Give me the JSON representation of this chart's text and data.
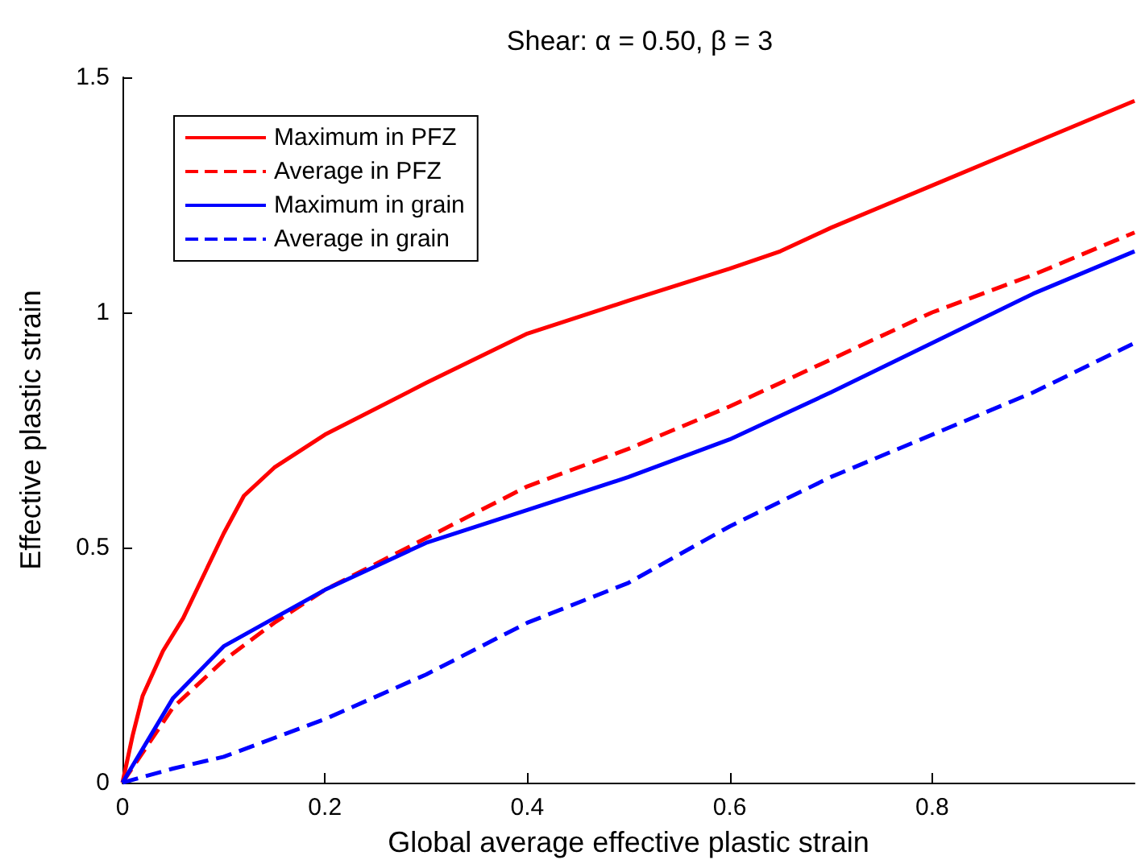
{
  "chart_data": {
    "type": "line",
    "title": "Shear: α = 0.50, β = 3",
    "xlabel": "Global average effective plastic strain",
    "ylabel": "Effective plastic strain",
    "xlim": [
      0,
      1
    ],
    "xticks": [
      0,
      0.2,
      0.4,
      0.6,
      0.8
    ],
    "ylim": [
      0,
      1.5
    ],
    "yticks": [
      0,
      0.5,
      1,
      1.5
    ],
    "grid": false,
    "legend": "top left",
    "marker": "none",
    "series": [
      {
        "name": "Maximum in PFZ",
        "color": "#ff0000",
        "line_style": "solid",
        "x": [
          0,
          0.01,
          0.02,
          0.04,
          0.06,
          0.08,
          0.1,
          0.12,
          0.15,
          0.2,
          0.3,
          0.4,
          0.5,
          0.6,
          0.65,
          0.7,
          0.8,
          0.9,
          1
        ],
        "values": [
          0,
          0.1,
          0.185,
          0.28,
          0.35,
          0.44,
          0.53,
          0.61,
          0.67,
          0.74,
          0.85,
          0.955,
          1.025,
          1.093,
          1.13,
          1.18,
          1.27,
          1.36,
          1.45
        ]
      },
      {
        "name": "Average in PFZ",
        "color": "#ff0000",
        "line_style": "dashed",
        "x": [
          0,
          0.05,
          0.1,
          0.15,
          0.2,
          0.3,
          0.4,
          0.5,
          0.6,
          0.7,
          0.8,
          0.9,
          1
        ],
        "values": [
          0,
          0.16,
          0.26,
          0.34,
          0.41,
          0.52,
          0.63,
          0.71,
          0.8,
          0.9,
          1.0,
          1.08,
          1.17
        ]
      },
      {
        "name": "Maximum in grain",
        "color": "#0000ff",
        "line_style": "solid",
        "x": [
          0,
          0.05,
          0.1,
          0.15,
          0.2,
          0.3,
          0.4,
          0.5,
          0.6,
          0.7,
          0.8,
          0.9,
          1
        ],
        "values": [
          0,
          0.18,
          0.29,
          0.35,
          0.41,
          0.51,
          0.58,
          0.65,
          0.73,
          0.83,
          0.935,
          1.04,
          1.13
        ]
      },
      {
        "name": "Average in grain",
        "color": "#0000ff",
        "line_style": "dashed",
        "x": [
          0,
          0.05,
          0.1,
          0.15,
          0.2,
          0.3,
          0.4,
          0.5,
          0.6,
          0.7,
          0.8,
          0.9,
          1
        ],
        "values": [
          0,
          0.03,
          0.055,
          0.095,
          0.135,
          0.23,
          0.34,
          0.425,
          0.545,
          0.65,
          0.74,
          0.83,
          0.935
        ]
      }
    ]
  }
}
